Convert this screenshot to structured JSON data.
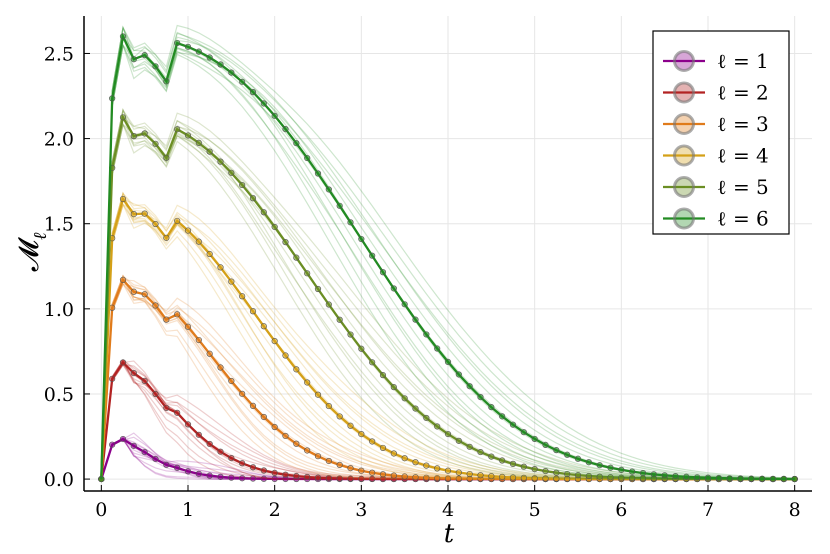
{
  "chart_data": {
    "type": "line",
    "xlabel": "t",
    "ylabel": "𝓜",
    "ylabel_sub": "ℓ",
    "xlim": [
      -0.2,
      8.2
    ],
    "ylim": [
      -0.07,
      2.72
    ],
    "x_ticks": [
      0,
      1,
      2,
      3,
      4,
      5,
      6,
      7,
      8
    ],
    "x_tick_labels": [
      "0",
      "1",
      "2",
      "3",
      "4",
      "5",
      "6",
      "7",
      "8"
    ],
    "y_ticks": [
      0,
      0.5,
      1,
      1.5,
      2,
      2.5
    ],
    "y_tick_labels": [
      "0.0",
      "0.5",
      "1.0",
      "1.5",
      "2.0",
      "2.5"
    ],
    "grid": true,
    "legend_position": "top-right",
    "series": [
      {
        "name": "ℓ = 1",
        "color": "#8b008b",
        "peak": 0.235,
        "decay": 0.6,
        "powr": 1.4
      },
      {
        "name": "ℓ = 2",
        "color": "#b22222",
        "peak": 0.685,
        "decay": 1.0,
        "powr": 1.6
      },
      {
        "name": "ℓ = 3",
        "color": "#e07b1b",
        "peak": 1.17,
        "decay": 1.65,
        "powr": 1.9
      },
      {
        "name": "ℓ = 4",
        "color": "#d4a017",
        "peak": 1.645,
        "decay": 2.25,
        "powr": 2.1
      },
      {
        "name": "ℓ = 5",
        "color": "#6b8e23",
        "peak": 2.125,
        "decay": 2.95,
        "powr": 2.3
      },
      {
        "name": "ℓ = 6",
        "color": "#228b22",
        "peak": 2.6,
        "decay": 3.6,
        "powr": 2.5
      }
    ]
  }
}
